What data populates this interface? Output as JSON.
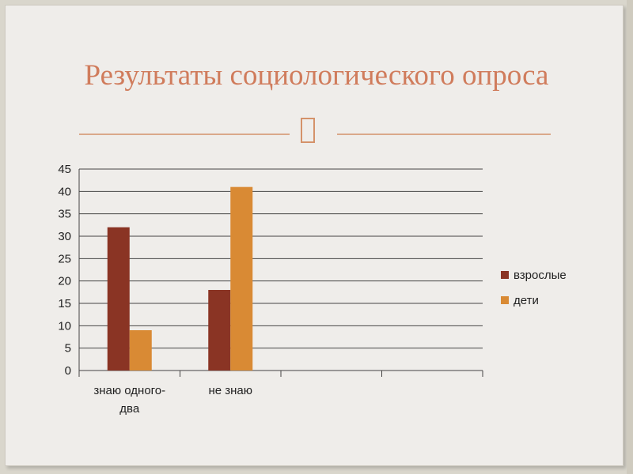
{
  "slide": {
    "title": "Результаты социологического опроса",
    "divider_icon": "ornament-icon"
  },
  "colors": {
    "title": "#d07c5c",
    "divider": "#d4926a",
    "series_adults": "#8a3424",
    "series_children": "#d98a34",
    "gridline": "#444444"
  },
  "chart_data": {
    "type": "bar",
    "categories": [
      "знаю одного-два",
      "не знаю",
      "",
      ""
    ],
    "series": [
      {
        "name": "взрослые",
        "values": [
          32,
          18,
          null,
          null
        ],
        "color": "#8a3424"
      },
      {
        "name": "дети",
        "values": [
          9,
          41,
          null,
          null
        ],
        "color": "#d98a34"
      }
    ],
    "ylim": [
      0,
      45
    ],
    "yticks": [
      0,
      5,
      10,
      15,
      20,
      25,
      30,
      35,
      40,
      45
    ],
    "grid": true,
    "legend": "right"
  }
}
